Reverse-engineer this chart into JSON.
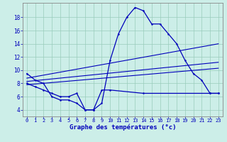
{
  "title": "Graphe des températures (°c)",
  "background_color": "#cceee8",
  "line_color": "#0000bb",
  "x_ticks": [
    0,
    1,
    2,
    3,
    4,
    5,
    6,
    7,
    8,
    9,
    10,
    11,
    12,
    13,
    14,
    15,
    16,
    17,
    18,
    19,
    20,
    21,
    22,
    23
  ],
  "y_ticks": [
    4,
    6,
    8,
    10,
    12,
    14,
    16,
    18
  ],
  "ylim": [
    3.0,
    20.2
  ],
  "xlim": [
    -0.5,
    23.5
  ],
  "series": {
    "max_temp": {
      "x": [
        0,
        1,
        2,
        3,
        4,
        5,
        6,
        7,
        8,
        9,
        10,
        11,
        12,
        13,
        14,
        15,
        16,
        17,
        18,
        19,
        20,
        21,
        22,
        23
      ],
      "y": [
        9.5,
        8.5,
        8.0,
        6.0,
        5.5,
        5.5,
        5.0,
        4.0,
        4.0,
        5.0,
        11.5,
        15.5,
        18.0,
        19.5,
        19.0,
        17.0,
        17.0,
        15.5,
        14.0,
        11.5,
        9.5,
        8.5,
        6.5,
        6.5
      ]
    },
    "min_temp": {
      "x": [
        0,
        1,
        2,
        3,
        4,
        5,
        6,
        7,
        8,
        9,
        10,
        14,
        22,
        23
      ],
      "y": [
        8.0,
        7.5,
        7.0,
        6.5,
        6.0,
        6.0,
        6.5,
        4.0,
        4.0,
        7.0,
        7.0,
        6.5,
        6.5,
        6.5
      ]
    },
    "avg_top": {
      "x": [
        0,
        23
      ],
      "y": [
        8.8,
        14.0
      ]
    },
    "avg_mid": {
      "x": [
        0,
        23
      ],
      "y": [
        8.3,
        11.2
      ]
    },
    "avg_bot": {
      "x": [
        0,
        23
      ],
      "y": [
        7.8,
        10.3
      ]
    }
  }
}
